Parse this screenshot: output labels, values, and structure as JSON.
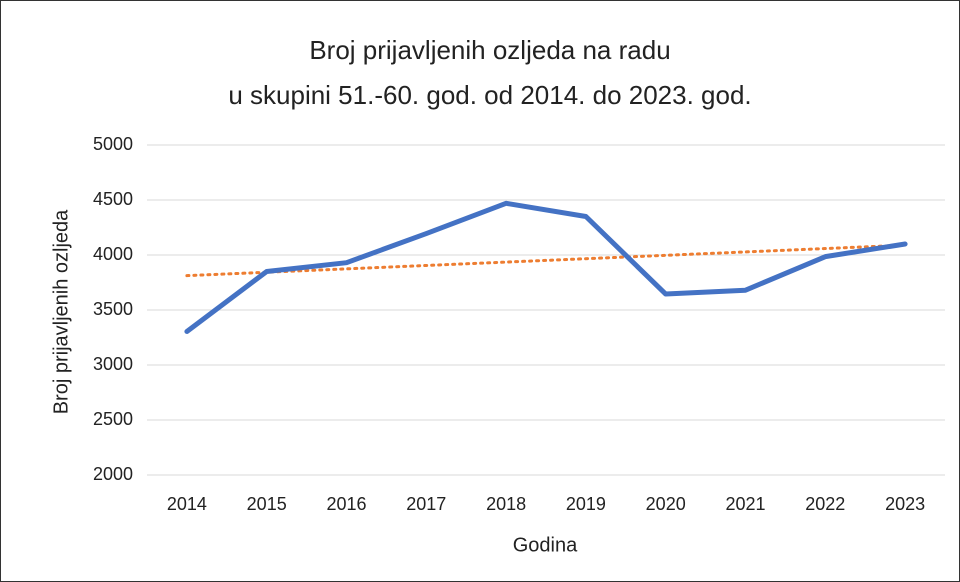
{
  "chart_data": {
    "type": "line",
    "title": "Broj prijavljenih ozljeda na radu",
    "subtitle": "u skupini 51.-60. god. od 2014. do 2023. god.",
    "xlabel": "Godina",
    "ylabel": "Broj prijavljenih ozljeda",
    "categories": [
      "2014",
      "2015",
      "2016",
      "2017",
      "2018",
      "2019",
      "2020",
      "2021",
      "2022",
      "2023"
    ],
    "series": [
      {
        "name": "Broj prijavljenih ozljeda",
        "color": "#4472c4",
        "values": [
          3305,
          3850,
          3930,
          4195,
          4470,
          4350,
          3645,
          3680,
          3985,
          4100
        ]
      }
    ],
    "trendline": {
      "kind": "linear",
      "color": "#ed7d31"
    },
    "ylim": [
      2000,
      5000
    ],
    "yticks": [
      2000,
      2500,
      3000,
      3500,
      4000,
      4500,
      5000
    ],
    "grid": true
  }
}
